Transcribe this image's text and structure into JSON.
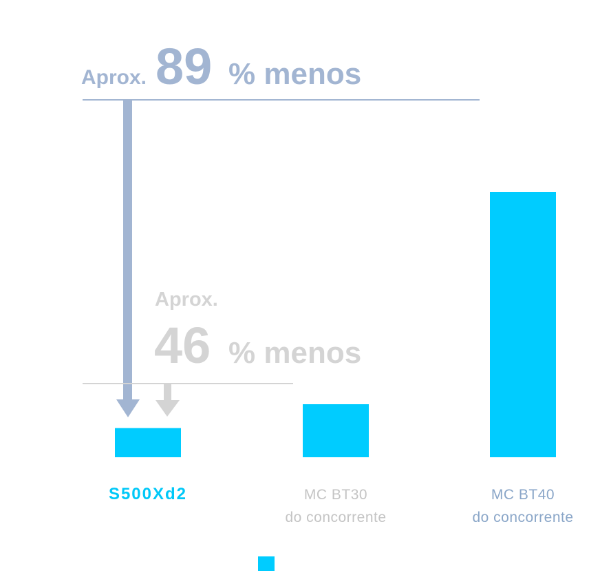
{
  "chart_data": {
    "type": "bar",
    "categories": [
      "S500Xd2",
      "MC BT30",
      "MC BT40"
    ],
    "category_sublabels": [
      null,
      "do concorrente",
      "do concorrente"
    ],
    "category_colors": [
      "#00c8f8",
      "#c4c4c4",
      "#8aa6c8"
    ],
    "values": [
      11,
      20,
      100
    ],
    "color": "#00ccff",
    "ylim": [
      0,
      100
    ],
    "annotations": [
      {
        "prefix": "Aprox.",
        "number": "89",
        "suffix": "% menos",
        "color": "#a2b5d2"
      },
      {
        "prefix": "Aprox.",
        "number": "46",
        "suffix": "% menos",
        "color": "#d4d4d4"
      }
    ]
  }
}
